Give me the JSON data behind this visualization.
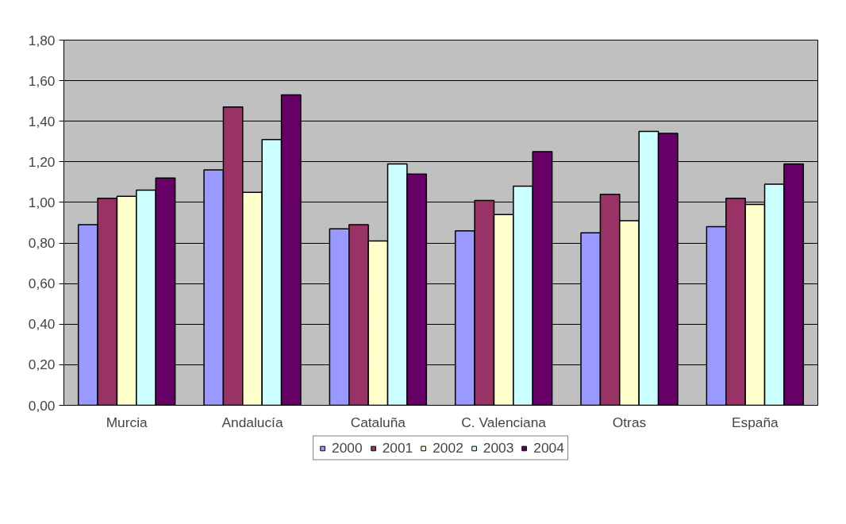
{
  "chart_data": {
    "type": "bar",
    "categories": [
      "Murcia",
      "Andalucía",
      "Cataluña",
      "C. Valenciana",
      "Otras",
      "España"
    ],
    "series": [
      {
        "name": "2000",
        "color": "#9999ff",
        "values": [
          0.89,
          1.16,
          0.87,
          0.86,
          0.85,
          0.88
        ]
      },
      {
        "name": "2001",
        "color": "#993366",
        "values": [
          1.02,
          1.47,
          0.89,
          1.01,
          1.04,
          1.02
        ]
      },
      {
        "name": "2002",
        "color": "#ffffcc",
        "values": [
          1.03,
          1.05,
          0.81,
          0.94,
          0.91,
          0.99
        ]
      },
      {
        "name": "2003",
        "color": "#ccffff",
        "values": [
          1.06,
          1.31,
          1.19,
          1.08,
          1.35,
          1.09
        ]
      },
      {
        "name": "2004",
        "color": "#660066",
        "values": [
          1.12,
          1.53,
          1.14,
          1.25,
          1.34,
          1.19
        ]
      }
    ],
    "ylim": [
      0,
      1.8
    ],
    "yticks": [
      {
        "value": 0,
        "label": "0,00"
      },
      {
        "value": 0.2,
        "label": "0,20"
      },
      {
        "value": 0.4,
        "label": "0,40"
      },
      {
        "value": 0.6,
        "label": "0,60"
      },
      {
        "value": 0.8,
        "label": "0,80"
      },
      {
        "value": 1.0,
        "label": "1,00"
      },
      {
        "value": 1.2,
        "label": "1,20"
      },
      {
        "value": 1.4,
        "label": "1,40"
      },
      {
        "value": 1.6,
        "label": "1,60"
      },
      {
        "value": 1.8,
        "label": "1,80"
      }
    ],
    "grid": "y",
    "legend": "bottom"
  }
}
